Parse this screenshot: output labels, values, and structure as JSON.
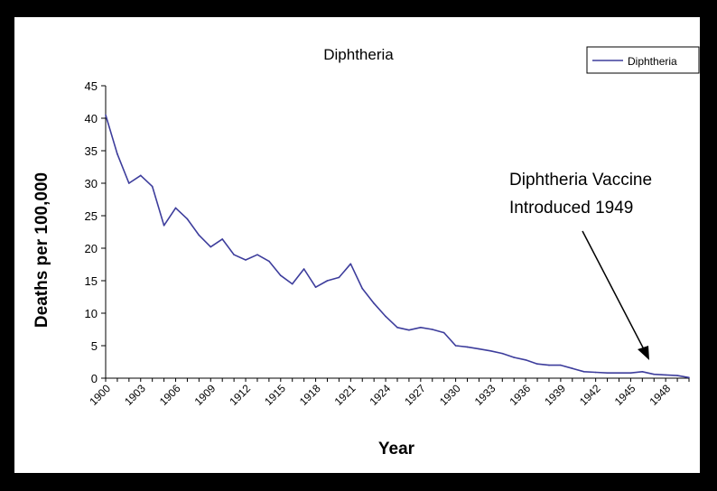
{
  "chart_data": {
    "type": "line",
    "title": "Diphtheria",
    "xlabel": "Year",
    "ylabel": "Deaths per 100,000",
    "ylim": [
      0,
      45
    ],
    "yticks": [
      0,
      5,
      10,
      15,
      20,
      25,
      30,
      35,
      40,
      45
    ],
    "xlim": [
      1900,
      1950
    ],
    "xtick_labels": [
      "1900",
      "1903",
      "1906",
      "1909",
      "1912",
      "1915",
      "1918",
      "1921",
      "1924",
      "1927",
      "1930",
      "1933",
      "1936",
      "1939",
      "1942",
      "1945",
      "1948"
    ],
    "legend": {
      "placement": "top-right",
      "entries": [
        "Diphtheria"
      ]
    },
    "colors": {
      "series": "#3d3d9c",
      "axis": "#000000"
    },
    "series": [
      {
        "name": "Diphtheria",
        "x": [
          1900,
          1901,
          1902,
          1903,
          1904,
          1905,
          1906,
          1907,
          1908,
          1909,
          1910,
          1911,
          1912,
          1913,
          1914,
          1915,
          1916,
          1917,
          1918,
          1919,
          1920,
          1921,
          1922,
          1923,
          1924,
          1925,
          1926,
          1927,
          1928,
          1929,
          1930,
          1931,
          1932,
          1933,
          1934,
          1935,
          1936,
          1937,
          1938,
          1939,
          1940,
          1941,
          1942,
          1943,
          1944,
          1945,
          1946,
          1947,
          1948,
          1949,
          1950
        ],
        "values": [
          40.5,
          34.5,
          30.0,
          31.2,
          29.5,
          23.5,
          26.2,
          24.5,
          22.0,
          20.2,
          21.4,
          19.0,
          18.2,
          19.0,
          18.0,
          15.8,
          14.5,
          16.8,
          14.0,
          15.0,
          15.5,
          17.6,
          13.8,
          11.5,
          9.5,
          7.8,
          7.4,
          7.8,
          7.5,
          7.0,
          5.0,
          4.8,
          4.5,
          4.2,
          3.8,
          3.2,
          2.8,
          2.2,
          2.0,
          2.0,
          1.5,
          1.0,
          0.9,
          0.8,
          0.8,
          0.8,
          1.0,
          0.6,
          0.5,
          0.4,
          0.1
        ]
      }
    ],
    "annotation": {
      "lines": [
        "Diphtheria Vaccine",
        "Introduced 1949"
      ],
      "points_to_year": 1949
    }
  }
}
